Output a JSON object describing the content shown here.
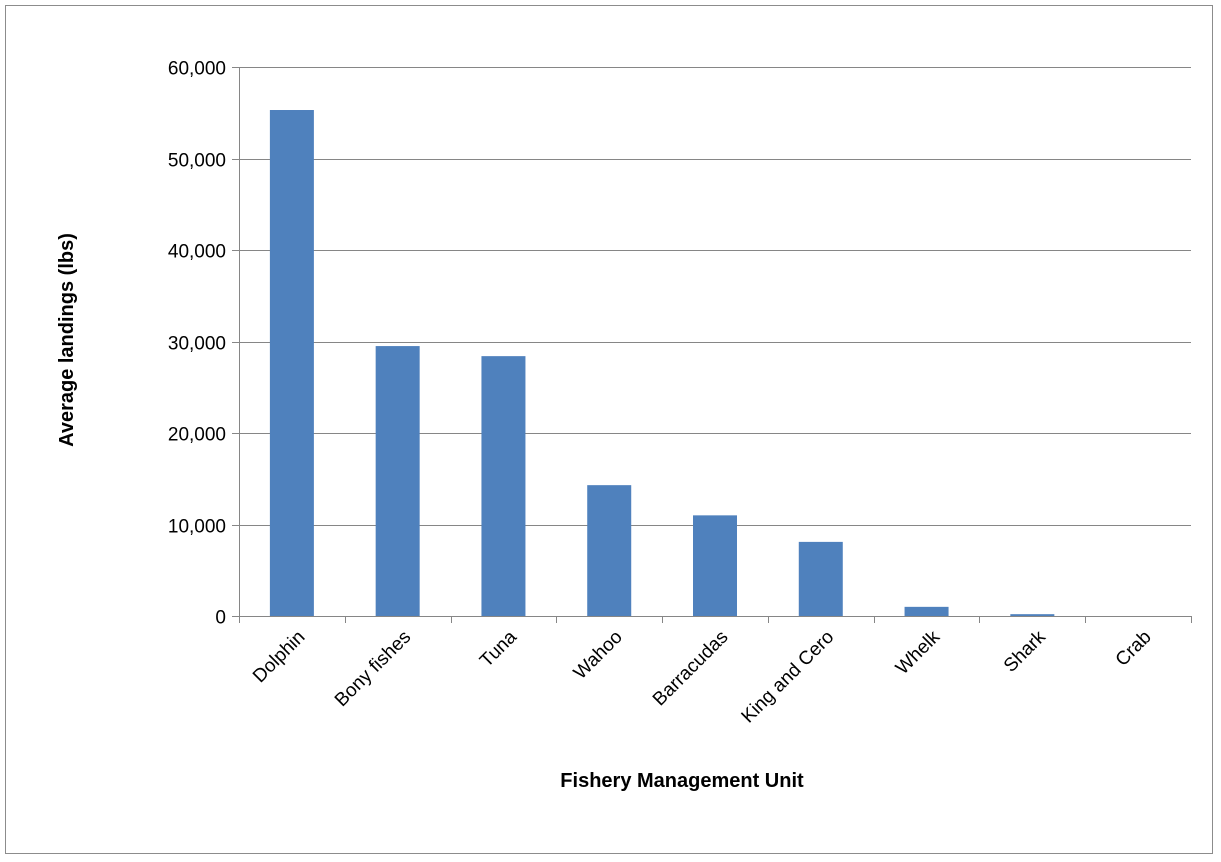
{
  "chart_data": {
    "type": "bar",
    "title": "",
    "xlabel": "Fishery Management Unit",
    "ylabel": "Average landings (lbs)",
    "categories": [
      "Dolphin",
      "Bony fishes",
      "Tuna",
      "Wahoo",
      "Barracudas",
      "King and Cero",
      "Whelk",
      "Shark",
      "Crab"
    ],
    "values": [
      55300,
      29500,
      28400,
      14300,
      11000,
      8100,
      1000,
      200,
      0
    ],
    "ylim": [
      0,
      60000
    ],
    "yticks": [
      0,
      10000,
      20000,
      30000,
      40000,
      50000,
      60000
    ],
    "ytick_labels": [
      "0",
      "10,000",
      "20,000",
      "30,000",
      "40,000",
      "50,000",
      "60,000"
    ],
    "grid": true,
    "legend": "none",
    "colors": {
      "bar": "#4f81bd",
      "grid": "#868686",
      "axis": "#868686",
      "border": "#8c8c8c"
    }
  }
}
